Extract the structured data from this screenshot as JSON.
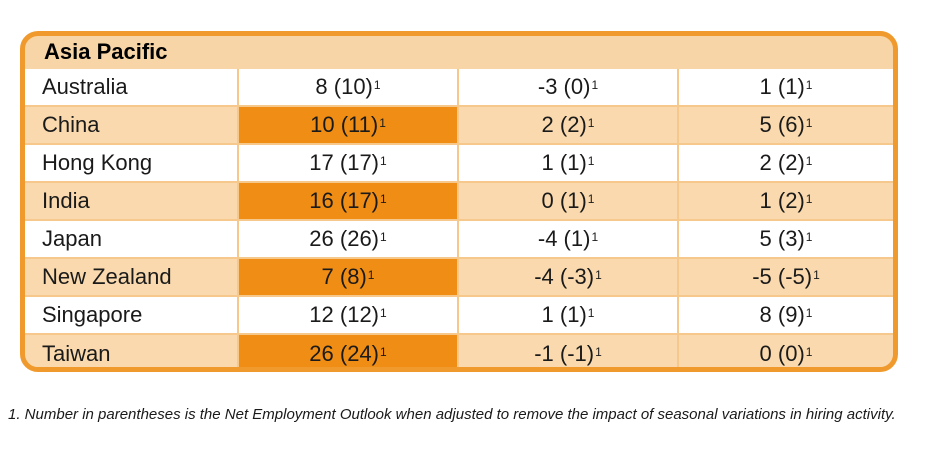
{
  "region": "Asia Pacific",
  "colors": {
    "border": "#f09a2e",
    "highlight": "#ef8d15",
    "tan_row": "#f9d9ad"
  },
  "rows": [
    {
      "country": "Australia",
      "c1": "8 (10)",
      "c2": "-3 (0)",
      "c3": "1 (1)",
      "note": "1",
      "shade": "white",
      "highlight": false
    },
    {
      "country": "China",
      "c1": "10 (11)",
      "c2": "2 (2)",
      "c3": "5 (6)",
      "note": "1",
      "shade": "tan",
      "highlight": true
    },
    {
      "country": "Hong Kong",
      "c1": "17 (17)",
      "c2": "1 (1)",
      "c3": "2 (2)",
      "note": "1",
      "shade": "white",
      "highlight": false
    },
    {
      "country": "India",
      "c1": "16 (17)",
      "c2": "0 (1)",
      "c3": "1 (2)",
      "note": "1",
      "shade": "tan",
      "highlight": true
    },
    {
      "country": "Japan",
      "c1": "26 (26)",
      "c2": "-4 (1)",
      "c3": "5 (3)",
      "note": "1",
      "shade": "white",
      "highlight": false
    },
    {
      "country": "New Zealand",
      "c1": "7 (8)",
      "c2": "-4 (-3)",
      "c3": "-5 (-5)",
      "note": "1",
      "shade": "tan",
      "highlight": true
    },
    {
      "country": "Singapore",
      "c1": "12 (12)",
      "c2": "1 (1)",
      "c3": "8 (9)",
      "note": "1",
      "shade": "white",
      "highlight": false
    },
    {
      "country": "Taiwan",
      "c1": "26 (24)",
      "c2": "-1 (-1)",
      "c3": "0 (0)",
      "note": "1",
      "shade": "tan",
      "highlight": true
    }
  ],
  "footnote": "1. Number in parentheses is the Net Employment Outlook when adjusted to remove the impact of seasonal variations in hiring activity."
}
